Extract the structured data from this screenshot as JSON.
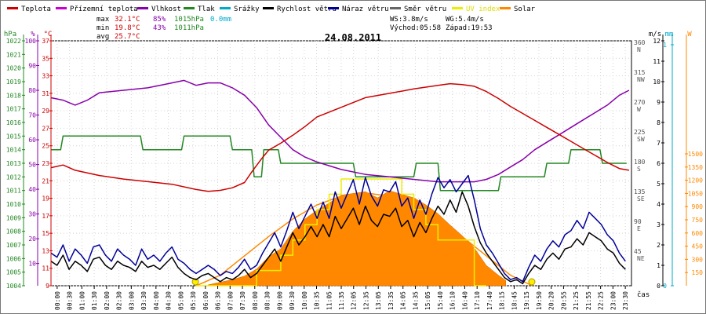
{
  "chart_data": {
    "type": "line",
    "title": "24.08.2011",
    "legend": [
      {
        "label": "Teplota",
        "color": "#cc0000"
      },
      {
        "label": "Přízemní teplota",
        "color": "#cc00cc"
      },
      {
        "label": "Vlhkost",
        "color": "#8800aa"
      },
      {
        "label": "Tlak",
        "color": "#228822"
      },
      {
        "label": "Srážky",
        "color": "#00aacc"
      },
      {
        "label": "Rychlost větru",
        "color": "#000000"
      },
      {
        "label": "Náraz větru",
        "color": "#000099"
      },
      {
        "label": "Směr větru",
        "color": "#666666"
      },
      {
        "label": "UV index",
        "color": "#eeee00"
      },
      {
        "label": "Solar",
        "color": "#ff8800"
      }
    ],
    "stats": {
      "max_label": "max",
      "max_temp": "32.1°C",
      "max_hum": "85%",
      "max_press": "1015hPa",
      "rain": "0.0mm",
      "min_label": "min",
      "min_temp": "19.8°C",
      "min_hum": "43%",
      "min_press": "1011hPa",
      "avg_label": "avg",
      "avg_temp": "25.7°C",
      "ws": "WS:3.8m/s",
      "wg": "WG:5.4m/s",
      "sunrise": "Východ:05:58",
      "sunset": "Západ:19:53"
    },
    "axes": {
      "hpa_title": "hPa",
      "pct_title": "%",
      "c_title": "°C",
      "ms_title": "m/s",
      "mm_title": "mm",
      "w_title": "W",
      "x_title": "čas",
      "hpa_ticks": [
        "1004",
        "1005",
        "1006",
        "1007",
        "1008",
        "1009",
        "1010",
        "1011",
        "1012",
        "1013",
        "1014",
        "1015",
        "1016",
        "1017",
        "1018",
        "1019",
        "1020",
        "1021",
        "1022"
      ],
      "pct_ticks": [
        "10",
        "20",
        "30",
        "40",
        "50",
        "60",
        "70",
        "80",
        "90",
        "100"
      ],
      "c_ticks": [
        "9",
        "11",
        "13",
        "15",
        "17",
        "19",
        "21",
        "23",
        "25",
        "27",
        "29",
        "31",
        "33",
        "35",
        "37"
      ],
      "deg_ticks": [
        "45",
        "90",
        "135",
        "180",
        "225",
        "270",
        "315",
        "360"
      ],
      "dir_ticks": [
        "NE",
        "E",
        "SE",
        "S",
        "SW",
        "W",
        "NW",
        "N"
      ],
      "ms_ticks": [
        "0",
        "1",
        "2",
        "3",
        "4",
        "5",
        "6",
        "7",
        "8",
        "9",
        "10",
        "11",
        "12"
      ],
      "mm_ticks": [
        "0",
        "1"
      ],
      "w_ticks": [
        "150",
        "300",
        "450",
        "600",
        "750",
        "900",
        "1050",
        "1200",
        "1350",
        "1500"
      ],
      "time_labels": [
        "00:00",
        "00:30",
        "01:00",
        "01:30",
        "02:00",
        "02:30",
        "03:00",
        "03:30",
        "04:00",
        "04:30",
        "05:00",
        "05:30",
        "06:00",
        "06:30",
        "07:00",
        "07:30",
        "08:00",
        "08:30",
        "09:00",
        "09:30",
        "10:00",
        "10:35",
        "11:05",
        "11:35",
        "12:05",
        "12:35",
        "13:05",
        "13:35",
        "14:05",
        "14:35",
        "15:05",
        "15:40",
        "16:10",
        "16:40",
        "17:10",
        "17:40",
        "18:15",
        "18:45",
        "19:15",
        "19:50",
        "20:20",
        "20:55",
        "21:25",
        "21:55",
        "22:25",
        "23:00",
        "23:30"
      ]
    },
    "series": {
      "temperature_c": {
        "t": [
          0,
          0.5,
          1,
          2,
          3,
          4,
          5,
          6,
          6.5,
          7,
          7.5,
          8,
          8.3,
          8.7,
          9,
          9.5,
          10,
          10.5,
          11,
          12,
          13,
          14,
          15,
          16,
          16.5,
          17,
          17.5,
          18,
          18.5,
          19,
          19.5,
          20,
          20.5,
          21,
          21.5,
          22,
          22.5,
          23,
          23.5,
          23.9
        ],
        "v": [
          22.5,
          22.8,
          22.2,
          21.6,
          21.2,
          20.9,
          20.6,
          20.0,
          19.8,
          19.9,
          20.2,
          20.8,
          22.0,
          23.5,
          24.5,
          25.3,
          26.2,
          27.2,
          28.3,
          29.4,
          30.5,
          31.0,
          31.5,
          31.9,
          32.1,
          32.0,
          31.8,
          31.2,
          30.4,
          29.5,
          28.7,
          27.9,
          27.1,
          26.3,
          25.5,
          24.7,
          23.9,
          23.1,
          22.4,
          22.2
        ]
      },
      "humidity_pct": {
        "t": [
          0,
          0.5,
          1,
          1.5,
          2,
          3,
          4,
          5,
          5.5,
          6,
          6.5,
          7,
          7.5,
          8,
          8.5,
          9,
          9.5,
          10,
          10.5,
          11,
          12,
          13,
          14,
          15,
          16,
          16.5,
          17,
          17.5,
          18,
          18.5,
          19,
          19.5,
          20,
          20.5,
          21,
          21.5,
          22,
          22.5,
          23,
          23.5,
          23.9
        ],
        "v": [
          77,
          76,
          74,
          76,
          79,
          80,
          81,
          83,
          84,
          82,
          83,
          83,
          81,
          78,
          73,
          66,
          61,
          56,
          53,
          51,
          48,
          46,
          45,
          44,
          43,
          43,
          43,
          43,
          44,
          46,
          49,
          52,
          56,
          59,
          62,
          65,
          68,
          71,
          74,
          78,
          80
        ]
      },
      "pressure_hpa": {
        "t": [
          0,
          0.4,
          0.5,
          3.7,
          3.8,
          5.4,
          5.5,
          7.4,
          7.5,
          8.3,
          8.4,
          8.7,
          8.8,
          9.4,
          9.5,
          10.3,
          10.4,
          12.5,
          12.6,
          15.0,
          15.1,
          16.0,
          16.1,
          18.5,
          18.6,
          19.0,
          19.1,
          20.4,
          20.5,
          21.4,
          21.5,
          22.7,
          22.8,
          23.8
        ],
        "v": [
          1014,
          1014,
          1015,
          1015,
          1014,
          1014,
          1015,
          1015,
          1014,
          1014,
          1012,
          1012,
          1014,
          1014,
          1013,
          1013,
          1013,
          1013,
          1012,
          1012,
          1013,
          1013,
          1011,
          1011,
          1012,
          1012,
          1012,
          1012,
          1013,
          1013,
          1014,
          1014,
          1013,
          1013
        ]
      },
      "wind_speed_ms": {
        "t": [
          0,
          0.25,
          0.5,
          0.75,
          1,
          1.25,
          1.5,
          1.75,
          2,
          2.25,
          2.5,
          2.75,
          3,
          3.25,
          3.5,
          3.75,
          4,
          4.25,
          4.5,
          4.75,
          5,
          5.25,
          5.5,
          5.75,
          6,
          6.25,
          6.5,
          6.75,
          7,
          7.25,
          7.5,
          7.75,
          8,
          8.25,
          8.5,
          8.75,
          9,
          9.25,
          9.5,
          9.75,
          10,
          10.25,
          10.5,
          10.75,
          11,
          11.25,
          11.5,
          11.75,
          12,
          12.25,
          12.5,
          12.75,
          13,
          13.25,
          13.5,
          13.75,
          14,
          14.25,
          14.5,
          14.75,
          15,
          15.25,
          15.5,
          15.75,
          16,
          16.25,
          16.5,
          16.75,
          17,
          17.25,
          17.5,
          17.75,
          18,
          18.25,
          18.5,
          18.75,
          19,
          19.25,
          19.5,
          19.75,
          20,
          20.25,
          20.5,
          20.75,
          21,
          21.25,
          21.5,
          21.75,
          22,
          22.25,
          22.5,
          22.75,
          23,
          23.25,
          23.5,
          23.75
        ],
        "v": [
          1.2,
          1.0,
          1.5,
          0.8,
          1.2,
          1.0,
          0.7,
          1.3,
          1.4,
          1.0,
          0.8,
          1.2,
          1.0,
          0.9,
          0.7,
          1.2,
          0.9,
          1.0,
          0.8,
          1.1,
          1.4,
          0.9,
          0.6,
          0.4,
          0.3,
          0.5,
          0.6,
          0.4,
          0.2,
          0.4,
          0.3,
          0.5,
          0.8,
          0.4,
          0.6,
          1.0,
          1.4,
          1.8,
          1.2,
          1.9,
          2.6,
          2.0,
          2.4,
          2.9,
          2.4,
          3.0,
          2.4,
          3.4,
          2.8,
          3.3,
          3.8,
          3.0,
          3.9,
          3.2,
          2.9,
          3.5,
          3.4,
          3.8,
          2.9,
          3.2,
          2.4,
          3.1,
          2.6,
          3.3,
          3.9,
          3.5,
          4.2,
          3.6,
          4.6,
          3.9,
          2.9,
          2.1,
          1.6,
          1.2,
          0.8,
          0.4,
          0.2,
          0.3,
          0.1,
          0.6,
          1.0,
          0.8,
          1.3,
          1.6,
          1.3,
          1.8,
          1.9,
          2.3,
          2.0,
          2.6,
          2.4,
          2.2,
          1.8,
          1.6,
          1.1,
          0.8
        ]
      },
      "wind_gust_ms": {
        "t": [
          0,
          0.25,
          0.5,
          0.75,
          1,
          1.25,
          1.5,
          1.75,
          2,
          2.25,
          2.5,
          2.75,
          3,
          3.25,
          3.5,
          3.75,
          4,
          4.25,
          4.5,
          4.75,
          5,
          5.25,
          5.5,
          5.75,
          6,
          6.25,
          6.5,
          6.75,
          7,
          7.25,
          7.5,
          7.75,
          8,
          8.25,
          8.5,
          8.75,
          9,
          9.25,
          9.5,
          9.75,
          10,
          10.25,
          10.5,
          10.75,
          11,
          11.25,
          11.5,
          11.75,
          12,
          12.25,
          12.5,
          12.75,
          13,
          13.25,
          13.5,
          13.75,
          14,
          14.25,
          14.5,
          14.75,
          15,
          15.25,
          15.5,
          15.75,
          16,
          16.25,
          16.5,
          16.75,
          17,
          17.25,
          17.5,
          17.75,
          18,
          18.25,
          18.5,
          18.75,
          19,
          19.25,
          19.5,
          19.75,
          20,
          20.25,
          20.5,
          20.75,
          21,
          21.25,
          21.5,
          21.75,
          22,
          22.25,
          22.5,
          22.75,
          23,
          23.25,
          23.5,
          23.75
        ],
        "v": [
          1.6,
          1.4,
          2.0,
          1.2,
          1.8,
          1.5,
          1.1,
          1.9,
          2.0,
          1.5,
          1.2,
          1.8,
          1.5,
          1.3,
          1.0,
          1.8,
          1.3,
          1.5,
          1.2,
          1.6,
          1.9,
          1.3,
          1.1,
          0.8,
          0.6,
          0.8,
          1.0,
          0.8,
          0.5,
          0.7,
          0.6,
          0.9,
          1.3,
          0.8,
          1.0,
          1.6,
          2.1,
          2.6,
          1.9,
          2.7,
          3.6,
          2.8,
          3.4,
          4.0,
          3.3,
          4.1,
          3.3,
          4.6,
          3.8,
          4.5,
          5.2,
          4.0,
          5.3,
          4.4,
          3.9,
          4.7,
          4.6,
          5.1,
          3.9,
          4.3,
          3.3,
          4.2,
          3.5,
          4.5,
          5.3,
          4.8,
          5.2,
          4.6,
          5.0,
          5.4,
          4.2,
          2.8,
          2.0,
          1.6,
          1.1,
          0.6,
          0.3,
          0.4,
          0.2,
          0.9,
          1.5,
          1.2,
          1.8,
          2.2,
          1.9,
          2.5,
          2.7,
          3.2,
          2.8,
          3.6,
          3.3,
          3.0,
          2.5,
          2.2,
          1.6,
          1.2
        ]
      },
      "solar_w": {
        "t": [
          6.5,
          7,
          7.5,
          8,
          8.5,
          9,
          9.5,
          10,
          10.5,
          11,
          11.5,
          12,
          12.5,
          13,
          13.5,
          14,
          14.5,
          15,
          15.5,
          16,
          16.5,
          17,
          17.5,
          18,
          18.5,
          18.8
        ],
        "v": [
          10,
          40,
          70,
          110,
          190,
          330,
          420,
          620,
          760,
          860,
          940,
          1030,
          1050,
          1070,
          1000,
          1080,
          1040,
          1000,
          920,
          820,
          690,
          570,
          430,
          230,
          120,
          60
        ]
      },
      "solar_theoretical_w": {
        "t": [
          6.0,
          7,
          8,
          9,
          10,
          11,
          12,
          13,
          14,
          15,
          16,
          17,
          18,
          19,
          19.9
        ],
        "v": [
          0,
          120,
          340,
          560,
          760,
          920,
          1020,
          1055,
          1020,
          920,
          760,
          560,
          340,
          120,
          0
        ]
      },
      "uv_index": {
        "t": [
          6,
          8.5,
          8.5,
          9.5,
          9.5,
          10,
          10,
          10.5,
          10.5,
          11,
          11,
          11.5,
          11.5,
          12,
          12,
          14.5,
          14.5,
          15,
          15,
          15.5,
          15.5,
          16,
          16,
          17.5,
          17.5,
          18
        ],
        "v": [
          0,
          0,
          1,
          1,
          2,
          2,
          3,
          3,
          4,
          4,
          5,
          5,
          6,
          6,
          7,
          7,
          6,
          6,
          5,
          5,
          4,
          4,
          3,
          3,
          0,
          0
        ]
      }
    }
  }
}
